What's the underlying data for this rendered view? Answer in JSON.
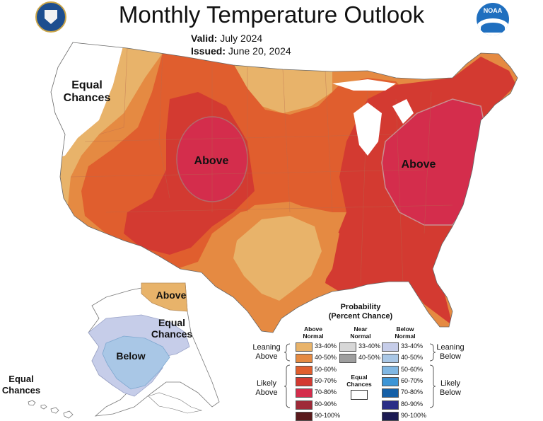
{
  "title": "Monthly Temperature Outlook",
  "valid": {
    "label": "Valid:",
    "value": "July 2024"
  },
  "issued": {
    "label": "Issued:",
    "value": "June 20, 2024"
  },
  "logos": {
    "left": "department-of-commerce-seal",
    "right": "noaa-logo",
    "right_text": "NOAA"
  },
  "map_labels": {
    "equal_chances_west": [
      "Equal",
      "Chances"
    ],
    "above_central": "Above",
    "above_east": "Above",
    "above_alaska": "Above",
    "equal_chances_alaska": [
      "Equal",
      "Chances"
    ],
    "below_alaska": "Below",
    "equal_chances_hawaii": [
      "Equal",
      "Chances"
    ]
  },
  "legend": {
    "title": [
      "Probability",
      "(Percent Chance)"
    ],
    "columns": {
      "above": [
        "Above",
        "Normal"
      ],
      "near": [
        "Near",
        "Normal"
      ],
      "below": [
        "Below",
        "Normal"
      ]
    },
    "above_rows": [
      {
        "label": "33-40%",
        "color": "#e8b36a"
      },
      {
        "label": "40-50%",
        "color": "#e58a42"
      },
      {
        "label": "50-60%",
        "color": "#e05e2e"
      },
      {
        "label": "60-70%",
        "color": "#d33a31"
      },
      {
        "label": "70-80%",
        "color": "#d42d4c"
      },
      {
        "label": "80-90%",
        "color": "#9e2a38"
      },
      {
        "label": "90-100%",
        "color": "#5a1a1c"
      }
    ],
    "near_rows": [
      {
        "label": "33-40%",
        "color": "#d7d7d7"
      },
      {
        "label": "40-50%",
        "color": "#9e9e9e"
      }
    ],
    "below_rows": [
      {
        "label": "33-40%",
        "color": "#c6cde9"
      },
      {
        "label": "40-50%",
        "color": "#a9c7e6"
      },
      {
        "label": "50-60%",
        "color": "#80b7e3"
      },
      {
        "label": "60-70%",
        "color": "#3d95d6"
      },
      {
        "label": "70-80%",
        "color": "#155fa6"
      },
      {
        "label": "80-90%",
        "color": "#2a2e86"
      },
      {
        "label": "90-100%",
        "color": "#1c1b52"
      }
    ],
    "equal_chances": [
      "Equal",
      "Chances"
    ],
    "leaning_above": [
      "Leaning",
      "Above"
    ],
    "likely_above": [
      "Likely",
      "Above"
    ],
    "leaning_below": [
      "Leaning",
      "Below"
    ],
    "likely_below": [
      "Likely",
      "Below"
    ]
  }
}
